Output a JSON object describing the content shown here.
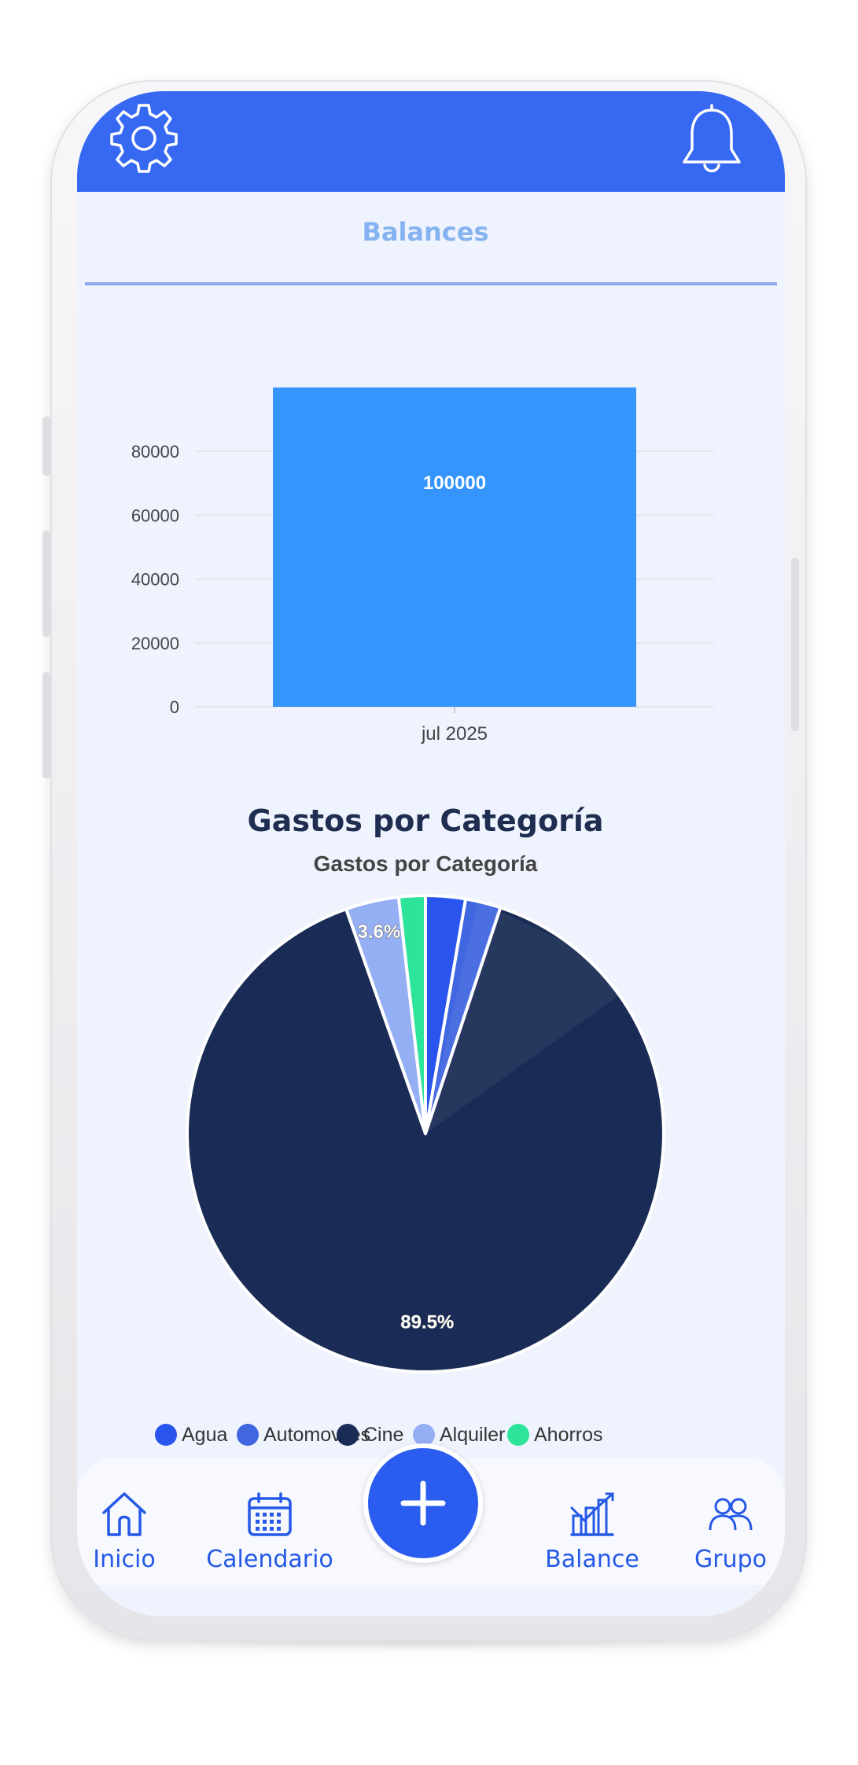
{
  "header": {
    "settings_icon": "gear-icon",
    "notifications_icon": "bell-icon",
    "color": "#3668f2"
  },
  "balances_section": {
    "title": "Balances",
    "chart_data": {
      "type": "bar",
      "categories": [
        "jul 2025"
      ],
      "values": [
        100000
      ],
      "data_labels": [
        "100000"
      ],
      "yticks": [
        "0",
        "20000",
        "40000",
        "60000",
        "80000"
      ],
      "ylim": [
        0,
        85000
      ],
      "grid": true,
      "bar_color": "#3595fc"
    }
  },
  "expenses_section": {
    "title": "Gastos por Categoría",
    "chart_data": {
      "type": "pie",
      "title": "Gastos por Categoría",
      "labels": [
        "Agua",
        "Automoviles",
        "Cine",
        "Alquiler",
        "Ahorros"
      ],
      "values": [
        2.7,
        2.4,
        89.5,
        3.6,
        1.8
      ],
      "data_labels": [
        "",
        "",
        "89.5%",
        "3.6%",
        ""
      ],
      "colors": [
        "#2a54ee",
        "#4066e0",
        "#1a2c56",
        "#95aff4",
        "#2de59a"
      ],
      "legend_position": "bottom"
    }
  },
  "bottom_nav": {
    "items": [
      {
        "label": "Inicio",
        "icon": "home-icon"
      },
      {
        "label": "Calendario",
        "icon": "calendar-icon"
      },
      {
        "label": "Balance",
        "icon": "chart-icon"
      },
      {
        "label": "Grupo",
        "icon": "group-icon"
      }
    ],
    "fab_icon": "plus-icon",
    "accent": "#2a5cf0"
  }
}
